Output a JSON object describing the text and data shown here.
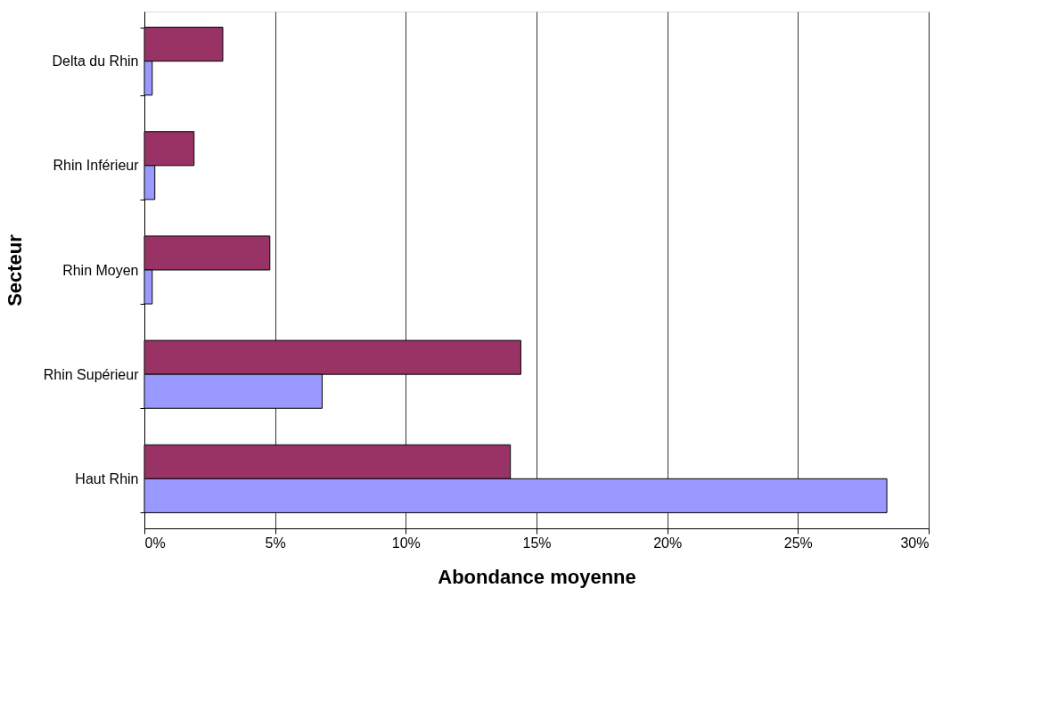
{
  "chart_data": {
    "type": "bar",
    "orientation": "horizontal",
    "xlabel": "Abondance moyenne",
    "ylabel": "Secteur",
    "categories": [
      "Delta du Rhin",
      "Rhin Inférieur",
      "Rhin Moyen",
      "Rhin Supérieur",
      "Haut Rhin"
    ],
    "series": [
      {
        "color": "#993366",
        "values": [
          3.0,
          1.9,
          4.8,
          14.4,
          14.0
        ]
      },
      {
        "color": "#9999ff",
        "values": [
          0.3,
          0.4,
          0.3,
          6.8,
          28.4
        ]
      }
    ],
    "xlim": [
      0,
      30
    ],
    "xticks": [
      {
        "value": 0,
        "label": "0%"
      },
      {
        "value": 5,
        "label": "5%"
      },
      {
        "value": 10,
        "label": "10%"
      },
      {
        "value": 15,
        "label": "15%"
      },
      {
        "value": 20,
        "label": "20%"
      },
      {
        "value": 25,
        "label": "25%"
      },
      {
        "value": 30,
        "label": "30%"
      }
    ],
    "grid": "x",
    "legend": false
  }
}
